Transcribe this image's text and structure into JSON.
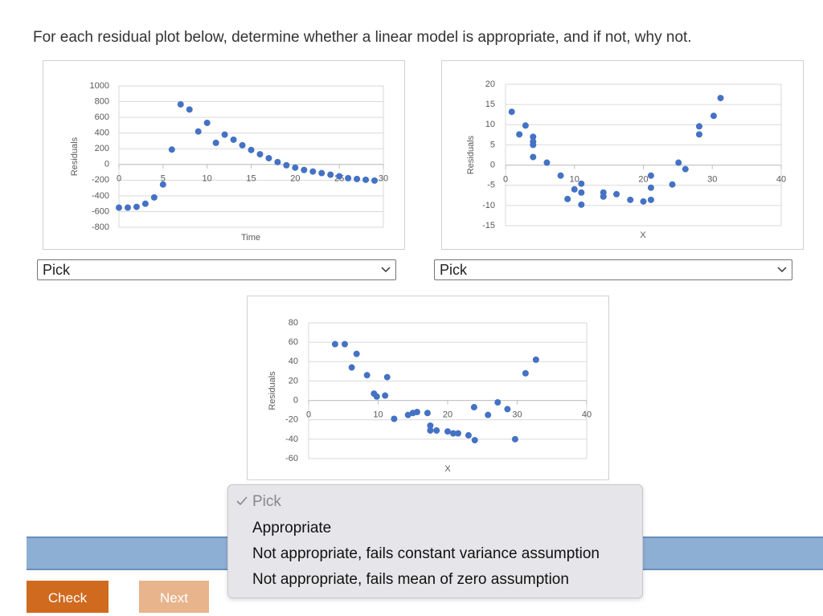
{
  "instructions": "For each residual plot below, determine whether a linear model is appropriate, and if not, why not.",
  "chart_data": [
    {
      "type": "scatter",
      "color": "#4472c4",
      "grid": true,
      "x_label": "Time",
      "y_label": "Residuals",
      "x": [
        0,
        1,
        2,
        3,
        4,
        5,
        6,
        7,
        8,
        9,
        10,
        11,
        12,
        13,
        14,
        15,
        16,
        17,
        18,
        19,
        20,
        21,
        22,
        23,
        24,
        25,
        26,
        27,
        28,
        29
      ],
      "values": [
        -550,
        -550,
        -540,
        -500,
        -420,
        -255,
        190,
        765,
        700,
        420,
        530,
        275,
        380,
        315,
        245,
        185,
        130,
        80,
        30,
        -10,
        -40,
        -70,
        -90,
        -110,
        -130,
        -150,
        -175,
        -185,
        -195,
        -205
      ],
      "xlim": [
        0,
        30
      ],
      "ylim": [
        -800,
        1000
      ],
      "xticks": [
        0,
        5,
        10,
        15,
        20,
        25,
        30
      ],
      "yticks": [
        -800,
        -600,
        -400,
        -200,
        0,
        200,
        400,
        600,
        800,
        1000
      ]
    },
    {
      "type": "scatter",
      "color": "#4472c4",
      "grid": true,
      "x_label": "X",
      "y_label": "Residuals",
      "x": [
        0.9,
        2,
        2.9,
        4,
        4,
        4,
        4,
        6,
        8,
        9,
        10,
        11,
        11,
        11,
        14.2,
        14.2,
        16.1,
        18.1,
        20,
        21.1,
        21.1,
        21.1,
        24.2,
        25.1,
        26.1,
        28.1,
        28.1,
        30.2,
        31.2
      ],
      "values": [
        13.2,
        7.6,
        9.8,
        7,
        5.8,
        5,
        2,
        0.6,
        -2.6,
        -8.4,
        -6,
        -4.6,
        -6.8,
        -9.8,
        -6.8,
        -7.8,
        -7.2,
        -8.6,
        -9,
        -2.6,
        -5.6,
        -8.6,
        -4.8,
        0.6,
        -1,
        7.6,
        9.6,
        12.2,
        16.6
      ],
      "xlim": [
        0,
        40
      ],
      "ylim": [
        -15,
        20
      ],
      "xticks": [
        0,
        10,
        20,
        30,
        40
      ],
      "yticks": [
        -15,
        -10,
        -5,
        0,
        5,
        10,
        15,
        20
      ]
    },
    {
      "type": "scatter",
      "color": "#4472c4",
      "grid": true,
      "x_label": "X",
      "y_label": "Residuals",
      "x": [
        3.8,
        5.2,
        6.9,
        6.2,
        8.4,
        9.4,
        9.8,
        11,
        11.3,
        12.3,
        14.3,
        15,
        15.6,
        17.1,
        17.5,
        17.5,
        18.4,
        20,
        20.8,
        21.5,
        23,
        23.8,
        23.9,
        25.8,
        27.2,
        28.6,
        29.7,
        31.2,
        32.7
      ],
      "values": [
        58,
        58,
        48,
        34,
        26,
        7,
        4,
        5,
        24,
        -19,
        -15,
        -13,
        -12,
        -13,
        -26,
        -31,
        -31,
        -32,
        -34,
        -34,
        -36,
        -7,
        -41,
        -15,
        -2,
        -9,
        -40,
        28,
        42
      ],
      "xlim": [
        0,
        40
      ],
      "ylim": [
        -60,
        80
      ],
      "xticks": [
        0,
        10,
        20,
        30,
        40
      ],
      "yticks": [
        -60,
        -40,
        -20,
        0,
        20,
        40,
        60,
        80
      ]
    }
  ],
  "selects": [
    "Pick",
    "Pick"
  ],
  "menu": {
    "options": [
      "Pick",
      "Appropriate",
      "Not appropriate, fails constant variance assumption",
      "Not appropriate, fails mean of zero assumption"
    ]
  },
  "buttons": [
    "Check",
    "Next"
  ]
}
